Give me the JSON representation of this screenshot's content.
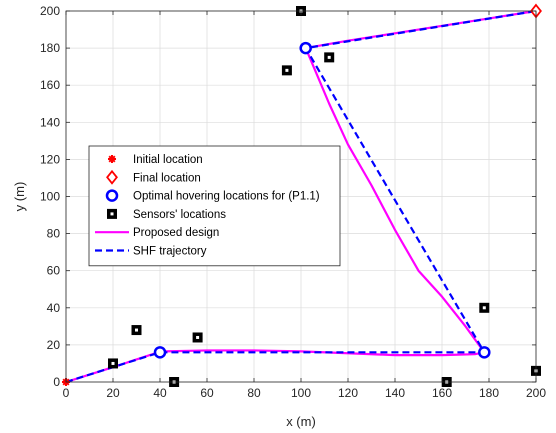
{
  "chart_data": {
    "type": "scatter",
    "xlabel": "x (m)",
    "ylabel": "y (m)",
    "xlim": [
      0,
      200
    ],
    "ylim": [
      0,
      200
    ],
    "xticks": [
      0,
      20,
      40,
      60,
      80,
      100,
      120,
      140,
      160,
      180,
      200
    ],
    "yticks": [
      0,
      20,
      40,
      60,
      80,
      100,
      120,
      140,
      160,
      180,
      200
    ],
    "grid": true,
    "legend_position": "center-left",
    "series": [
      {
        "name": "Initial location",
        "kind": "marker",
        "marker": "asterisk",
        "color": "#ff0000",
        "points": [
          [
            0,
            0
          ]
        ]
      },
      {
        "name": "Final location",
        "kind": "marker",
        "marker": "diamond",
        "color": "#ff0000",
        "points": [
          [
            200,
            200
          ]
        ]
      },
      {
        "name": "Optimal hovering locations for (P1.1)",
        "kind": "marker",
        "marker": "circle",
        "color": "#0000ff",
        "points": [
          [
            40,
            16
          ],
          [
            178,
            16
          ],
          [
            102,
            180
          ]
        ]
      },
      {
        "name": "Sensors' locations",
        "kind": "marker",
        "marker": "square",
        "color": "#000000",
        "points": [
          [
            20,
            10
          ],
          [
            30,
            28
          ],
          [
            46,
            0
          ],
          [
            56,
            24
          ],
          [
            94,
            168
          ],
          [
            100,
            200
          ],
          [
            112,
            175
          ],
          [
            162,
            0
          ],
          [
            178,
            40
          ],
          [
            200,
            6
          ]
        ]
      },
      {
        "name": "Proposed design",
        "kind": "line",
        "style": "solid",
        "color": "#ff00ff",
        "points": [
          [
            0,
            0
          ],
          [
            20,
            8
          ],
          [
            38,
            15.5
          ],
          [
            42,
            16.5
          ],
          [
            60,
            17
          ],
          [
            80,
            17
          ],
          [
            100,
            16.5
          ],
          [
            120,
            15.5
          ],
          [
            140,
            14.5
          ],
          [
            160,
            14.5
          ],
          [
            174,
            15
          ],
          [
            178,
            16
          ],
          [
            170,
            30
          ],
          [
            160,
            46
          ],
          [
            150,
            60
          ],
          [
            140,
            82
          ],
          [
            130,
            106
          ],
          [
            120,
            128
          ],
          [
            112,
            150
          ],
          [
            106,
            168
          ],
          [
            102,
            180
          ],
          [
            120,
            184
          ],
          [
            150,
            190
          ],
          [
            180,
            196
          ],
          [
            200,
            200
          ]
        ]
      },
      {
        "name": "SHF trajectory",
        "kind": "line",
        "style": "dashed",
        "color": "#0000ff",
        "points": [
          [
            0,
            0
          ],
          [
            40,
            16
          ],
          [
            178,
            16
          ],
          [
            102,
            180
          ],
          [
            200,
            200
          ]
        ]
      }
    ]
  }
}
